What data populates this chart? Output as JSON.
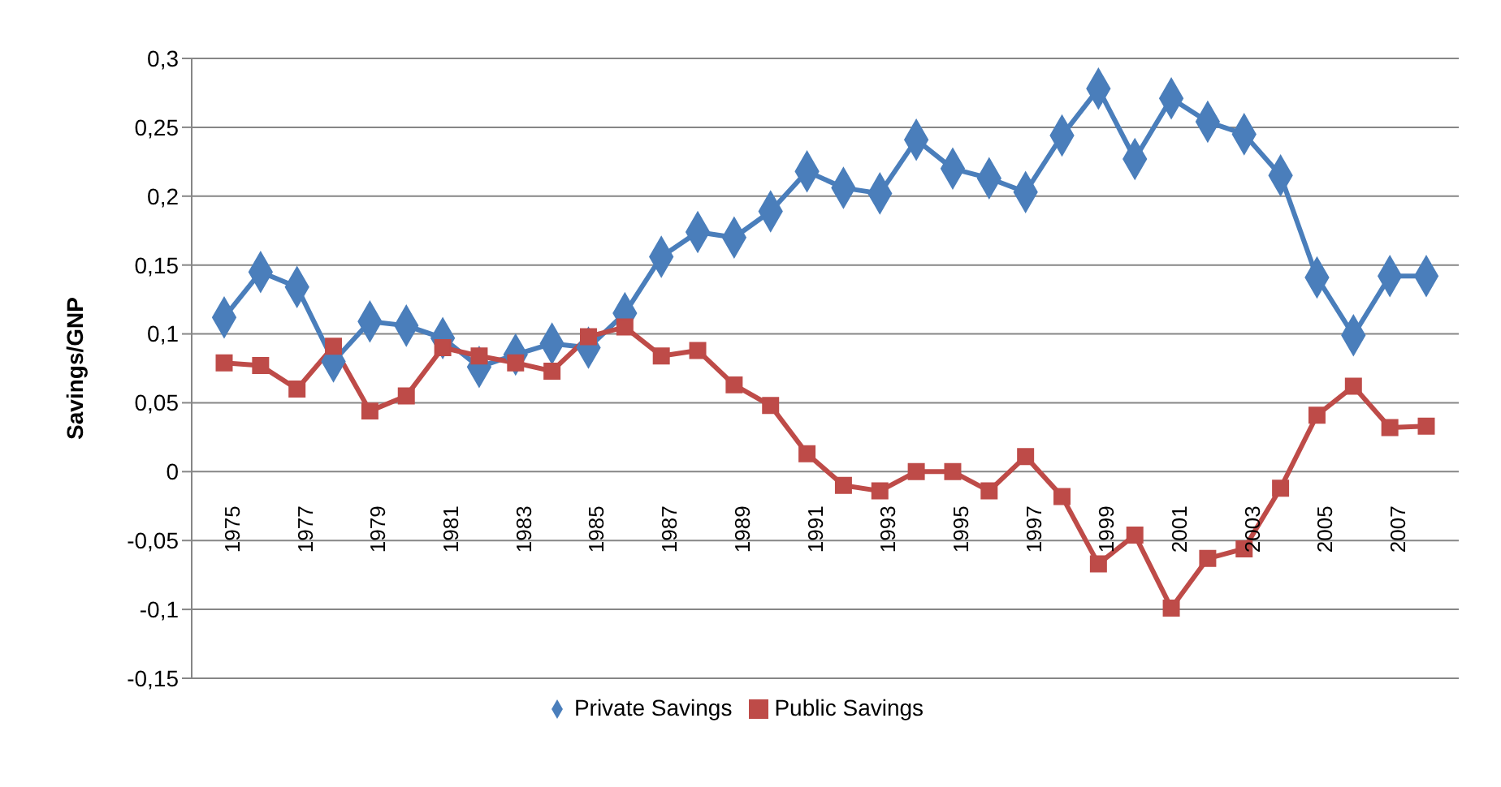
{
  "chart_data": {
    "type": "line",
    "ylabel": "Savings/GNP",
    "categories": [
      "1975",
      null,
      "1977",
      null,
      "1979",
      null,
      "1981",
      null,
      "1983",
      null,
      "1985",
      null,
      "1987",
      null,
      "1989",
      null,
      "1991",
      null,
      "1993",
      null,
      "1995",
      null,
      "1997",
      null,
      "1999",
      null,
      "2001",
      null,
      "2003",
      null,
      "2005",
      null,
      "2007",
      null
    ],
    "series": [
      {
        "name": "Private Savings",
        "color": "#4a7ebb",
        "marker": "diamond",
        "values": [
          0.112,
          0.145,
          0.134,
          0.08,
          0.109,
          0.106,
          0.097,
          0.076,
          0.085,
          0.093,
          0.09,
          0.115,
          0.156,
          0.174,
          0.17,
          0.189,
          0.218,
          0.206,
          0.202,
          0.241,
          0.22,
          0.213,
          0.203,
          0.244,
          0.278,
          0.227,
          0.271,
          0.254,
          0.245,
          0.215,
          0.141,
          0.099,
          0.142,
          0.142
        ]
      },
      {
        "name": "Public Savings",
        "color": "#be4b48",
        "marker": "square",
        "values": [
          0.079,
          0.077,
          0.06,
          0.091,
          0.044,
          0.055,
          0.09,
          0.084,
          0.079,
          0.073,
          0.098,
          0.105,
          0.084,
          0.088,
          0.063,
          0.048,
          0.013,
          -0.01,
          -0.014,
          0.0,
          0.0,
          -0.014,
          0.011,
          -0.018,
          -0.067,
          -0.046,
          -0.099,
          -0.063,
          -0.056,
          -0.012,
          0.041,
          0.062,
          0.032,
          0.033
        ]
      }
    ],
    "ylim": [
      -0.15,
      0.3
    ],
    "yticks": [
      {
        "value": -0.15,
        "label": "-0,15"
      },
      {
        "value": -0.1,
        "label": "-0,1"
      },
      {
        "value": -0.05,
        "label": "-0,05"
      },
      {
        "value": 0,
        "label": "0"
      },
      {
        "value": 0.05,
        "label": "0,05"
      },
      {
        "value": 0.1,
        "label": "0,1"
      },
      {
        "value": 0.15,
        "label": "0,15"
      },
      {
        "value": 0.2,
        "label": "0,2"
      },
      {
        "value": 0.25,
        "label": "0,25"
      },
      {
        "value": 0.3,
        "label": "0,3"
      }
    ],
    "grid": "y",
    "legend": "bottom",
    "line_style": "solid"
  }
}
